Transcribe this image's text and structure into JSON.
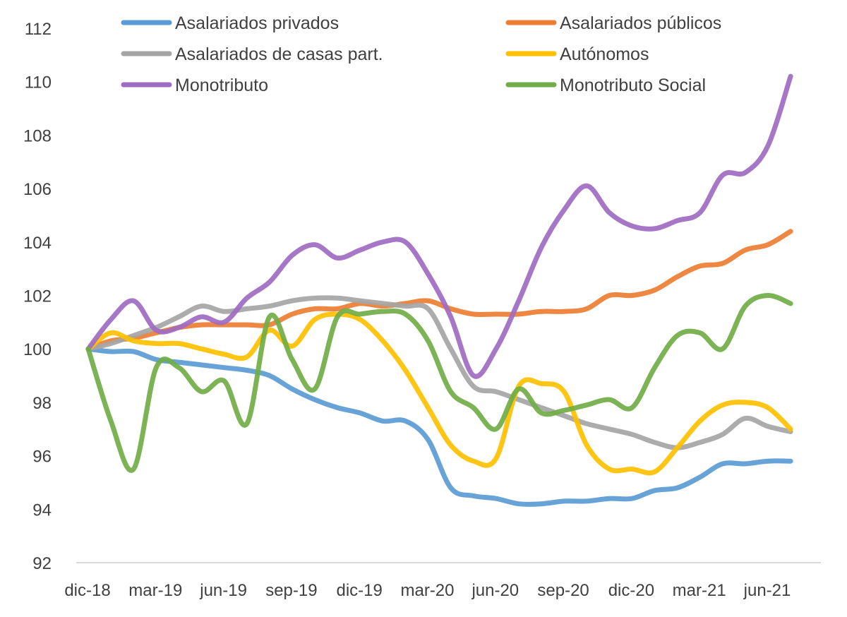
{
  "chart_data": {
    "type": "line",
    "title": "",
    "xlabel": "",
    "ylabel": "",
    "ylim": [
      92,
      112
    ],
    "yticks": [
      92,
      94,
      96,
      98,
      100,
      102,
      104,
      106,
      108,
      110,
      112
    ],
    "ytick_labels": [
      "92",
      "94",
      "96",
      "98",
      "100",
      "102",
      "104",
      "106",
      "108",
      "110",
      "112"
    ],
    "grid": false,
    "legend_position": "top",
    "x": [
      "dic-18",
      "ene-19",
      "feb-19",
      "mar-19",
      "abr-19",
      "may-19",
      "jun-19",
      "jul-19",
      "ago-19",
      "sep-19",
      "oct-19",
      "nov-19",
      "dic-19",
      "ene-20",
      "feb-20",
      "mar-20",
      "abr-20",
      "may-20",
      "jun-20",
      "jul-20",
      "ago-20",
      "sep-20",
      "oct-20",
      "nov-20",
      "dic-20",
      "ene-21",
      "feb-21",
      "mar-21",
      "abr-21",
      "may-21",
      "jun-21",
      "jul-21"
    ],
    "xtick_labels": [
      "dic-18",
      "mar-19",
      "jun-19",
      "sep-19",
      "dic-19",
      "mar-20",
      "jun-20",
      "sep-20",
      "dic-20",
      "mar-21",
      "jun-21"
    ],
    "xtick_index": [
      0,
      3,
      6,
      9,
      12,
      15,
      18,
      21,
      24,
      27,
      30
    ],
    "series": [
      {
        "name": "Asalariados privados",
        "color": "#5B9BD5",
        "values": [
          100.0,
          99.9,
          99.9,
          99.6,
          99.5,
          99.4,
          99.3,
          99.2,
          99.0,
          98.5,
          98.1,
          97.8,
          97.6,
          97.3,
          97.3,
          96.6,
          94.8,
          94.5,
          94.4,
          94.2,
          94.2,
          94.3,
          94.3,
          94.4,
          94.4,
          94.7,
          94.8,
          95.2,
          95.7,
          95.7,
          95.8,
          95.8
        ]
      },
      {
        "name": "Asalariados públicos",
        "color": "#ED7D31",
        "values": [
          100.0,
          100.3,
          100.4,
          100.6,
          100.8,
          100.9,
          100.9,
          100.9,
          100.9,
          101.3,
          101.5,
          101.5,
          101.7,
          101.6,
          101.7,
          101.8,
          101.5,
          101.3,
          101.3,
          101.3,
          101.4,
          101.4,
          101.5,
          102.0,
          102.0,
          102.2,
          102.7,
          103.1,
          103.2,
          103.7,
          103.9,
          104.4
        ]
      },
      {
        "name": "Asalariados de casas part.",
        "color": "#A5A5A5",
        "values": [
          100.0,
          100.2,
          100.5,
          100.8,
          101.2,
          101.6,
          101.4,
          101.5,
          101.6,
          101.8,
          101.9,
          101.9,
          101.8,
          101.7,
          101.6,
          101.5,
          100.0,
          98.6,
          98.4,
          98.1,
          97.8,
          97.5,
          97.2,
          97.0,
          96.8,
          96.5,
          96.3,
          96.5,
          96.8,
          97.4,
          97.1,
          96.9
        ]
      },
      {
        "name": "Autónomos",
        "color": "#FFC000",
        "values": [
          100.0,
          100.6,
          100.3,
          100.2,
          100.2,
          100.0,
          99.8,
          99.7,
          100.7,
          100.1,
          101.1,
          101.3,
          101.1,
          100.3,
          99.2,
          97.8,
          96.4,
          95.8,
          95.9,
          98.6,
          98.7,
          98.4,
          96.4,
          95.5,
          95.5,
          95.4,
          96.3,
          97.3,
          97.9,
          98.0,
          97.8,
          97.0
        ]
      },
      {
        "name": "Monotributo",
        "color": "#9E6BC1",
        "values": [
          100.0,
          101.1,
          101.8,
          100.7,
          100.8,
          101.2,
          101.0,
          101.9,
          102.5,
          103.5,
          103.9,
          103.4,
          103.7,
          104.0,
          104.0,
          102.8,
          101.2,
          99.0,
          100.0,
          101.8,
          103.8,
          105.2,
          106.1,
          105.1,
          104.6,
          104.5,
          104.8,
          105.1,
          106.5,
          106.6,
          107.6,
          110.2
        ]
      },
      {
        "name": "Monotributo Social",
        "color": "#70AD47",
        "values": [
          100.0,
          97.3,
          95.5,
          99.3,
          99.3,
          98.4,
          98.8,
          97.2,
          101.2,
          99.6,
          98.5,
          101.2,
          101.3,
          101.4,
          101.3,
          100.3,
          98.4,
          97.8,
          97.0,
          98.5,
          97.6,
          97.7,
          97.9,
          98.1,
          97.8,
          99.3,
          100.5,
          100.6,
          100.0,
          101.6,
          102.0,
          101.7
        ]
      }
    ]
  }
}
